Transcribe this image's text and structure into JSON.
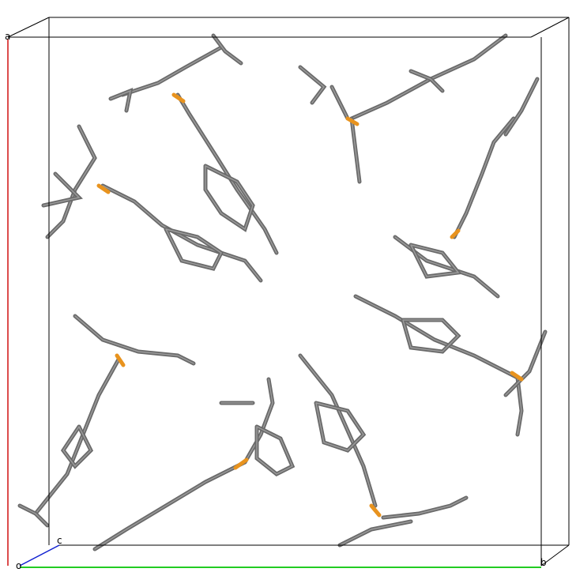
{
  "axis_labels": {
    "a": "a",
    "origin": "o",
    "c": "c",
    "b": "b"
  }
}
